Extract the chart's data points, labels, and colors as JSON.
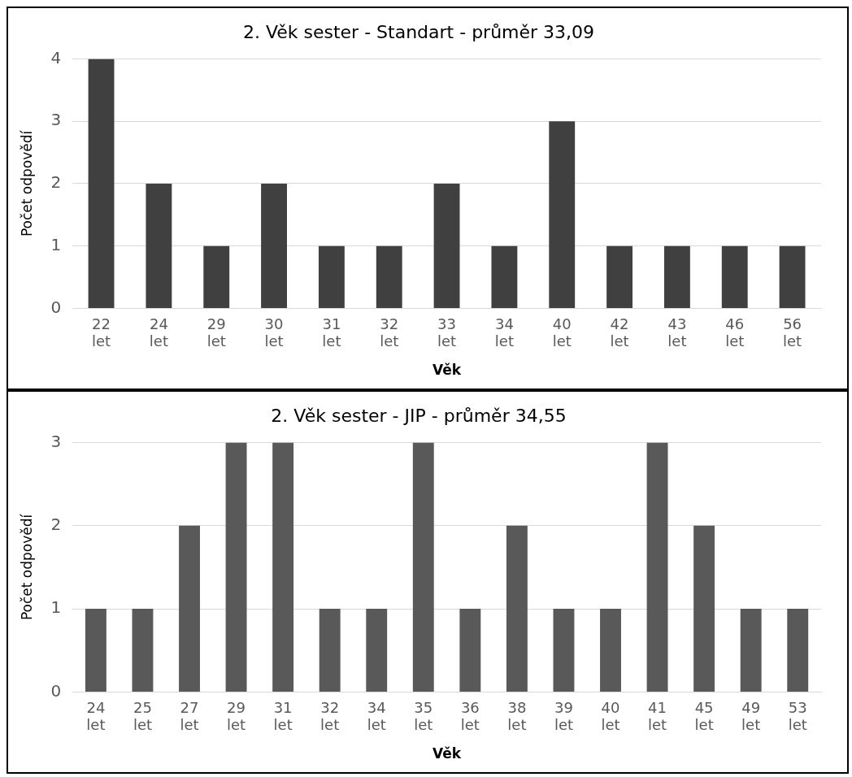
{
  "chart_data": [
    {
      "type": "bar",
      "title": "2. Věk sester - Standart - průměr 33,09",
      "xlabel": "Věk",
      "ylabel": "Počet odpovědí",
      "categories": [
        "22 let",
        "24 let",
        "29 let",
        "30 let",
        "31 let",
        "32 let",
        "33 let",
        "34 let",
        "40 let",
        "42 let",
        "43 let",
        "46 let",
        "56 let"
      ],
      "values": [
        4,
        2,
        1,
        2,
        1,
        1,
        2,
        1,
        3,
        1,
        1,
        1,
        1
      ],
      "color": "#404040",
      "ylim": [
        0,
        4
      ],
      "yticks": [
        0,
        1,
        2,
        3,
        4
      ],
      "grid": "y",
      "legend": false
    },
    {
      "type": "bar",
      "title": "2. Věk sester - JIP - průměr 34,55",
      "xlabel": "Věk",
      "ylabel": "Počet odpovědí",
      "categories": [
        "24 let",
        "25 let",
        "27 let",
        "29 let",
        "31 let",
        "32 let",
        "34 let",
        "35 let",
        "36 let",
        "38 let",
        "39 let",
        "40 let",
        "41 let",
        "45 let",
        "49 let",
        "53 let"
      ],
      "values": [
        1,
        1,
        2,
        3,
        3,
        1,
        1,
        3,
        1,
        2,
        1,
        1,
        3,
        2,
        1,
        1
      ],
      "color": "#595959",
      "ylim": [
        0,
        3
      ],
      "yticks": [
        0,
        1,
        2,
        3
      ],
      "grid": "y",
      "legend": false
    }
  ]
}
